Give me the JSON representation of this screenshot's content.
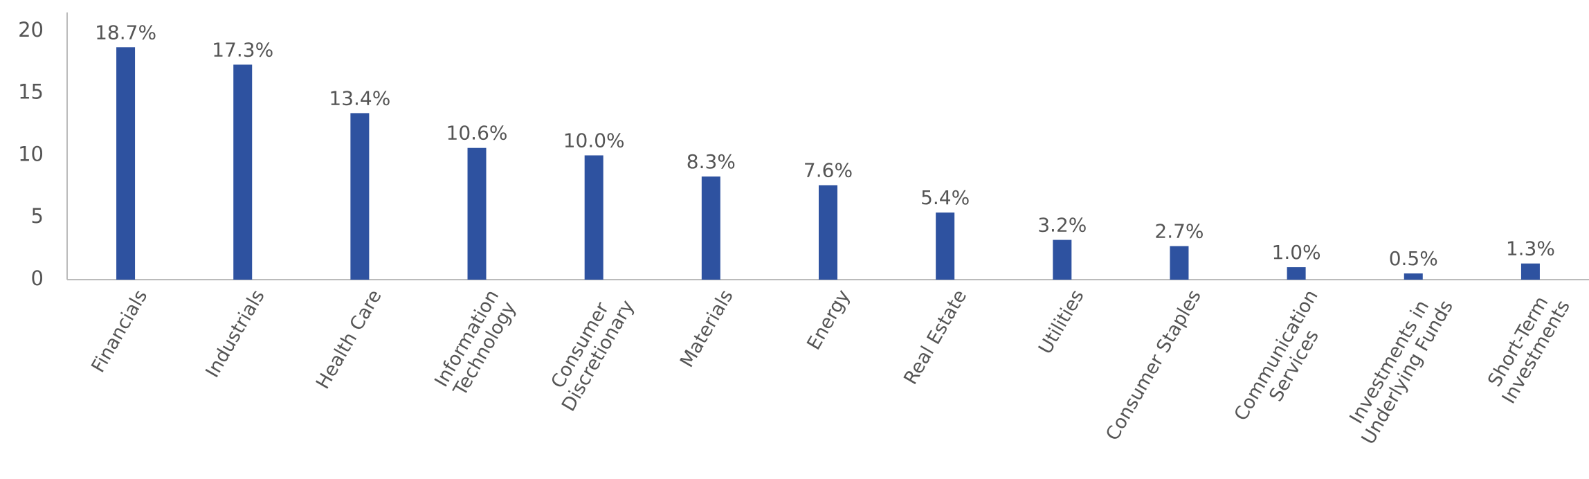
{
  "chart_data": {
    "type": "bar",
    "categories": [
      "Financials",
      "Industrials",
      "Health Care",
      "Information\nTechnology",
      "Consumer\nDiscretionary",
      "Materials",
      "Energy",
      "Real Estate",
      "Utilities",
      "Consumer Staples",
      "Communication\nServices",
      "Investments in\nUnderlying Funds",
      "Short-Term\nInvestments"
    ],
    "values": [
      18.7,
      17.3,
      13.4,
      10.6,
      10.0,
      8.3,
      7.6,
      5.4,
      3.2,
      2.7,
      1.0,
      0.5,
      1.3
    ],
    "value_labels": [
      "18.7%",
      "17.3%",
      "13.4%",
      "10.6%",
      "10.0%",
      "8.3%",
      "7.6%",
      "5.4%",
      "3.2%",
      "2.7%",
      "1.0%",
      "0.5%",
      "1.3%"
    ],
    "color": "#2e52a0",
    "ylim": [
      0,
      21.5
    ],
    "yticks": [
      0,
      5,
      10,
      15,
      20
    ],
    "grid": false
  }
}
